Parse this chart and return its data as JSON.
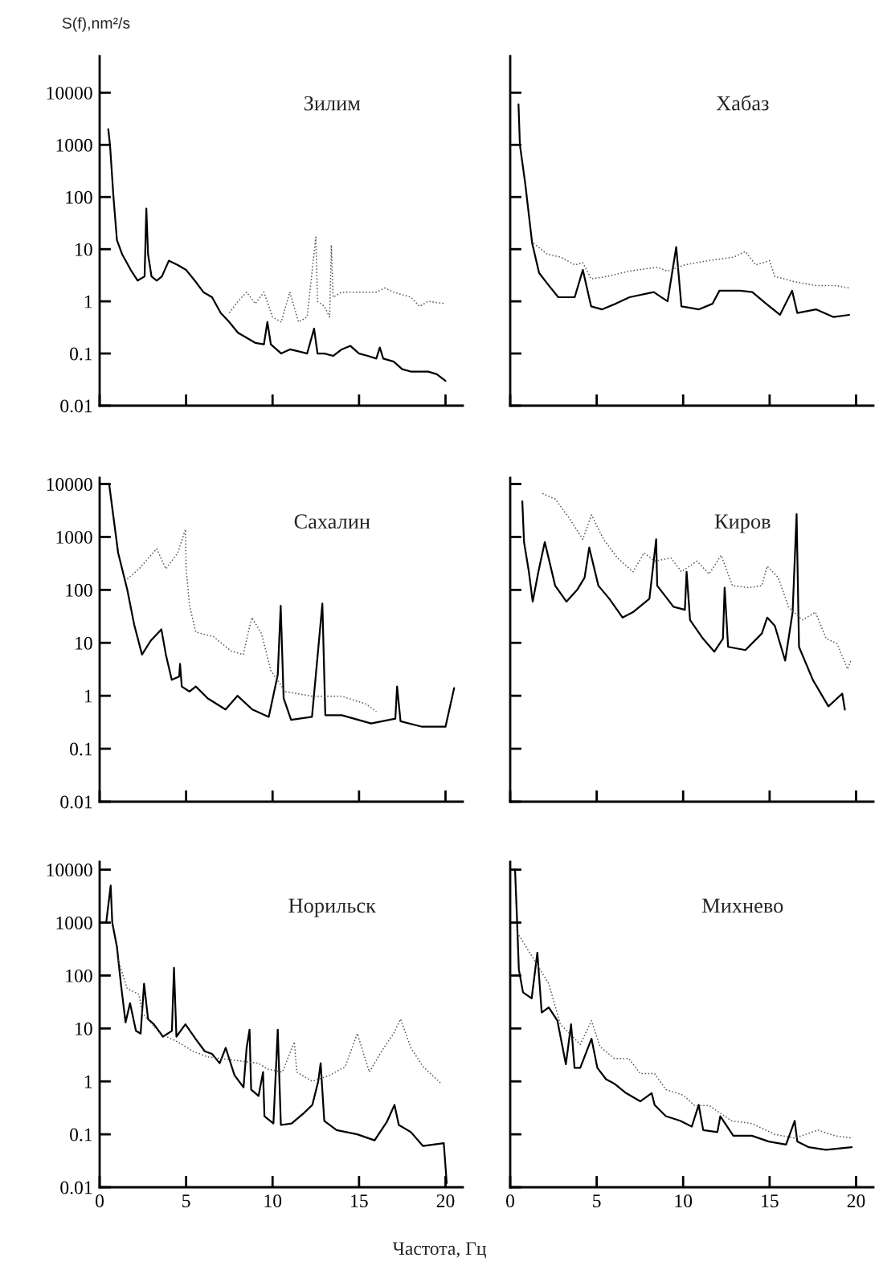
{
  "chart_data": [
    {
      "type": "line",
      "title": "Зилим",
      "ylabel": "S(f),nm²/s",
      "log": "y",
      "xlim": [
        0,
        21
      ],
      "ylim": [
        0.01,
        50000
      ],
      "xticks": [
        0,
        5,
        10,
        15,
        20
      ],
      "yticks": [
        0.01,
        0.1,
        1,
        10,
        100,
        1000,
        10000
      ],
      "tick_labels": "y",
      "grid": false,
      "legend": false,
      "series": [
        {
          "color": "#000000",
          "line_style": "solid",
          "x": [
            0.5,
            0.6,
            0.8,
            1,
            1.3,
            1.8,
            2.2,
            2.6,
            2.7,
            2.8,
            3.0,
            3.3,
            3.6,
            4.0,
            4.5,
            5.0,
            5.5,
            6.0,
            6.5,
            7.0,
            7.5,
            8.0,
            8.5,
            9,
            9.5,
            9.7,
            9.9,
            10.5,
            11,
            11.5,
            12,
            12.4,
            12.6,
            13,
            13.5,
            14,
            14.5,
            15,
            15.5,
            16,
            16.2,
            16.4,
            17,
            17.5,
            18,
            19,
            19.5,
            20
          ],
          "values": [
            2000,
            1000,
            100,
            15,
            8,
            4,
            2.5,
            3,
            60,
            8,
            3,
            2.5,
            3,
            6,
            5,
            4,
            2.5,
            1.5,
            1.2,
            0.6,
            0.4,
            0.25,
            0.2,
            0.16,
            0.15,
            0.4,
            0.15,
            0.1,
            0.12,
            0.11,
            0.1,
            0.3,
            0.1,
            0.1,
            0.09,
            0.12,
            0.14,
            0.1,
            0.09,
            0.08,
            0.13,
            0.08,
            0.07,
            0.05,
            0.045,
            0.045,
            0.04,
            0.03
          ]
        },
        {
          "color": "#555555",
          "line_style": "dotted",
          "x": [
            7.5,
            8,
            8.5,
            9,
            9.5,
            10,
            10.5,
            11,
            11.5,
            12,
            12.5,
            12.6,
            13,
            13.3,
            13.4,
            13.5,
            14,
            15,
            16,
            16.5,
            17,
            18,
            18.5,
            19,
            20
          ],
          "values": [
            0.6,
            1,
            1.5,
            0.9,
            1.5,
            0.5,
            0.4,
            1.5,
            0.4,
            0.5,
            17,
            1,
            0.8,
            0.5,
            12,
            1.2,
            1.5,
            1.5,
            1.5,
            1.8,
            1.5,
            1.2,
            0.8,
            1,
            0.9
          ]
        }
      ]
    },
    {
      "type": "line",
      "title": "Хабаз",
      "log": "y",
      "xlim": [
        0,
        21
      ],
      "ylim": [
        0.01,
        50000
      ],
      "xticks": [
        0,
        5,
        10,
        15,
        20
      ],
      "yticks": [
        0.01,
        0.1,
        1,
        10,
        100,
        1000,
        10000
      ],
      "tick_labels": false,
      "grid": false,
      "legend": false,
      "series": [
        {
          "color": "#000000",
          "line_style": "solid",
          "x": [
            0.48,
            0.56,
            0.87,
            1.27,
            1.67,
            2.14,
            2.78,
            3.73,
            4.2,
            4.68,
            5.3,
            6.1,
            6.9,
            8.3,
            9.1,
            9.6,
            9.9,
            10.9,
            11.7,
            12.1,
            13.3,
            14.0,
            14.8,
            15.6,
            16.3,
            16.6,
            17.7,
            18.7,
            19.6
          ],
          "values": [
            6000,
            1000,
            180,
            13,
            3.5,
            2.2,
            1.2,
            1.2,
            4,
            0.8,
            0.7,
            0.9,
            1.2,
            1.5,
            1,
            11,
            0.8,
            0.7,
            0.9,
            1.6,
            1.6,
            1.5,
            0.9,
            0.55,
            1.6,
            0.6,
            0.7,
            0.5,
            0.55
          ]
        },
        {
          "color": "#555555",
          "line_style": "dotted",
          "x": [
            1.35,
            2.14,
            2.94,
            3.73,
            4.2,
            4.68,
            5.6,
            6.9,
            8.5,
            9.1,
            10.1,
            11.4,
            12.9,
            13.6,
            14.2,
            15.0,
            15.3,
            16.4,
            17.7,
            18.8,
            19.6
          ],
          "values": [
            13,
            8,
            7,
            5,
            5.5,
            2.7,
            3,
            3.8,
            4.5,
            3.8,
            5,
            6,
            7,
            9,
            5,
            6,
            3,
            2.4,
            2,
            2,
            1.8
          ]
        }
      ]
    },
    {
      "type": "line",
      "title": "Сахалин",
      "log": "y",
      "xlim": [
        0,
        21
      ],
      "ylim": [
        0.01,
        13000
      ],
      "xticks": [
        0,
        5,
        10,
        15,
        20
      ],
      "yticks": [
        0.01,
        0.1,
        1,
        10,
        100,
        1000,
        10000
      ],
      "tick_labels": "y",
      "grid": false,
      "legend": false,
      "series": [
        {
          "color": "#000000",
          "line_style": "solid",
          "x": [
            0.55,
            1.07,
            1.6,
            2.0,
            2.45,
            2.96,
            3.57,
            3.83,
            4.17,
            4.6,
            4.65,
            4.75,
            5.2,
            5.56,
            6.24,
            7.28,
            7.97,
            8.83,
            9.78,
            10.3,
            10.47,
            10.64,
            11.07,
            12.28,
            12.88,
            13.05,
            14.0,
            15.7,
            17.1,
            17.2,
            17.4,
            18.65,
            20.0,
            20.5
          ],
          "values": [
            10000,
            500,
            100,
            22,
            6,
            11,
            18,
            6,
            2,
            2.3,
            4,
            1.5,
            1.2,
            1.5,
            0.9,
            0.55,
            1,
            0.55,
            0.4,
            2.5,
            50,
            0.9,
            0.35,
            0.4,
            55,
            0.43,
            0.43,
            0.3,
            0.37,
            1.5,
            0.33,
            0.26,
            0.26,
            1.4
          ]
        },
        {
          "color": "#555555",
          "line_style": "dotted",
          "x": [
            1.6,
            2.28,
            3.3,
            3.83,
            4.52,
            4.96,
            5.0,
            5.2,
            5.56,
            6.6,
            7.6,
            8.3,
            8.8,
            9.36,
            9.9,
            10.74,
            12.3,
            14.0,
            15.4,
            16.0
          ],
          "values": [
            160,
            250,
            600,
            250,
            500,
            1400,
            250,
            50,
            16,
            13,
            7,
            6,
            30,
            15,
            3,
            1.2,
            0.98,
            0.98,
            0.7,
            0.5
          ]
        }
      ]
    },
    {
      "type": "line",
      "title": "Киров",
      "log": "y",
      "xlim": [
        0,
        21
      ],
      "ylim": [
        0.01,
        13000
      ],
      "xticks": [
        0,
        5,
        10,
        15,
        20
      ],
      "yticks": [
        0.01,
        0.1,
        1,
        10,
        100,
        1000,
        10000
      ],
      "tick_labels": false,
      "grid": false,
      "legend": false,
      "series": [
        {
          "color": "#000000",
          "line_style": "solid",
          "x": [
            0.7,
            0.8,
            1.08,
            1.3,
            1.63,
            2.0,
            2.6,
            3.25,
            3.87,
            4.3,
            4.57,
            5.1,
            5.73,
            6.5,
            7.1,
            8.05,
            8.44,
            8.5,
            9.44,
            10.1,
            10.2,
            10.4,
            11.15,
            11.8,
            12.3,
            12.4,
            12.6,
            13.6,
            14.55,
            14.86,
            15.3,
            15.9,
            16.33,
            16.56,
            16.7,
            17.5,
            18.4,
            19.2,
            19.35
          ],
          "values": [
            4700,
            800,
            220,
            60,
            220,
            800,
            120,
            60,
            100,
            170,
            630,
            120,
            68,
            30,
            38,
            68,
            900,
            120,
            48,
            42,
            220,
            27,
            12,
            6.8,
            12,
            110,
            8.4,
            7.3,
            15,
            30,
            21,
            4.6,
            38,
            2700,
            8.4,
            2,
            0.63,
            1.1,
            0.55
          ]
        },
        {
          "color": "#555555",
          "line_style": "dotted",
          "x": [
            1.86,
            2.6,
            3.4,
            4.2,
            4.7,
            5.4,
            6.2,
            7.1,
            7.74,
            8.36,
            9.3,
            9.9,
            10.8,
            11.5,
            12.2,
            12.85,
            13.8,
            14.55,
            14.86,
            15.5,
            16.1,
            16.9,
            17.65,
            18.27,
            18.9,
            19.5,
            19.7
          ],
          "values": [
            6600,
            5200,
            2300,
            900,
            2600,
            900,
            400,
            220,
            500,
            350,
            400,
            220,
            350,
            200,
            450,
            120,
            110,
            120,
            280,
            170,
            47,
            27,
            38,
            12,
            9.7,
            3.2,
            4.6
          ]
        }
      ]
    },
    {
      "type": "line",
      "title": "Норильск",
      "xlabel": "Частота, Гц",
      "log": "y",
      "xlim": [
        0,
        21
      ],
      "ylim": [
        0.01,
        14000
      ],
      "xticks": [
        0,
        5,
        10,
        15,
        20
      ],
      "yticks": [
        0.01,
        0.1,
        1,
        10,
        100,
        1000,
        10000
      ],
      "grid": false,
      "legend": false,
      "series": [
        {
          "color": "#000000",
          "line_style": "solid",
          "x": [
            0.38,
            0.64,
            0.73,
            1.0,
            1.24,
            1.5,
            1.76,
            2.1,
            2.37,
            2.57,
            2.8,
            3.14,
            3.66,
            4.18,
            4.3,
            4.44,
            4.96,
            5.56,
            6.08,
            6.5,
            6.94,
            7.29,
            7.8,
            8.32,
            8.5,
            8.67,
            8.76,
            9.19,
            9.45,
            9.53,
            10.05,
            10.3,
            10.48,
            11.1,
            11.8,
            12.3,
            12.64,
            12.78,
            12.99,
            13.7,
            14.9,
            15.9,
            16.6,
            17.05,
            17.3,
            18.0,
            18.7,
            19.9,
            20.07
          ],
          "values": [
            1000,
            5000,
            1000,
            350,
            65,
            13,
            30,
            9,
            8,
            70,
            15,
            12,
            7,
            9,
            140,
            7,
            12,
            6.3,
            3.7,
            3.3,
            2.2,
            4.3,
            1.3,
            0.77,
            4.3,
            9.5,
            0.7,
            0.53,
            1.5,
            0.22,
            0.16,
            9.5,
            0.15,
            0.16,
            0.25,
            0.36,
            1.0,
            2.2,
            0.18,
            0.12,
            0.1,
            0.077,
            0.17,
            0.36,
            0.15,
            0.11,
            0.06,
            0.068,
            0.012
          ]
        },
        {
          "color": "#555555",
          "line_style": "dotted",
          "x": [
            1.07,
            1.59,
            2.28,
            2.45,
            3.5,
            4.5,
            5.4,
            6.25,
            9.19,
            9.7,
            10.57,
            11.26,
            11.4,
            12.3,
            13.3,
            14.2,
            14.9,
            15.6,
            16.3,
            17.0,
            17.4,
            18.0,
            18.7,
            19.7
          ],
          "values": [
            200,
            57,
            44,
            20,
            8,
            5.6,
            3.7,
            2.9,
            2.2,
            1.7,
            1.5,
            5.6,
            1.5,
            1.0,
            1.3,
            1.9,
            8,
            1.5,
            3.7,
            8,
            15,
            4.3,
            1.9,
            0.94
          ]
        }
      ]
    },
    {
      "type": "line",
      "title": "Михнево",
      "log": "y",
      "xlim": [
        0,
        21
      ],
      "ylim": [
        0.01,
        14000
      ],
      "xticks": [
        0,
        5,
        10,
        15,
        20
      ],
      "yticks": [
        0.01,
        0.1,
        1,
        10,
        100,
        1000,
        10000
      ],
      "tick_labels": "x",
      "grid": false,
      "legend": false,
      "series": [
        {
          "color": "#000000",
          "line_style": "solid",
          "x": [
            0.28,
            0.38,
            0.5,
            0.74,
            1.24,
            1.57,
            1.82,
            2.23,
            2.73,
            3.22,
            3.52,
            3.72,
            4.05,
            4.7,
            5.04,
            5.54,
            6.03,
            6.7,
            7.52,
            8.18,
            8.35,
            9.0,
            9.83,
            10.5,
            10.9,
            11.16,
            11.98,
            12.15,
            12.9,
            13.97,
            14.96,
            15.95,
            16.45,
            16.6,
            17.27,
            18.26,
            19.75
          ],
          "values": [
            10000,
            1500,
            130,
            48,
            37,
            270,
            20,
            25,
            14,
            2.1,
            12,
            1.8,
            1.8,
            6.4,
            1.8,
            1.1,
            0.9,
            0.6,
            0.42,
            0.6,
            0.36,
            0.22,
            0.18,
            0.14,
            0.36,
            0.12,
            0.11,
            0.22,
            0.094,
            0.094,
            0.073,
            0.064,
            0.18,
            0.073,
            0.057,
            0.051,
            0.057
          ]
        },
        {
          "color": "#555555",
          "line_style": "dotted",
          "x": [
            0.41,
            2.23,
            2.9,
            4.05,
            4.7,
            5.2,
            6.03,
            6.86,
            7.52,
            8.35,
            9.0,
            10.0,
            10.66,
            11.5,
            12.8,
            13.97,
            15.3,
            16.45,
            17.8,
            18.76,
            19.75
          ],
          "values": [
            650,
            70,
            12,
            5,
            14,
            4.5,
            2.7,
            2.7,
            1.4,
            1.4,
            0.7,
            0.55,
            0.35,
            0.35,
            0.18,
            0.16,
            0.1,
            0.085,
            0.12,
            0.094,
            0.085
          ]
        }
      ]
    }
  ]
}
